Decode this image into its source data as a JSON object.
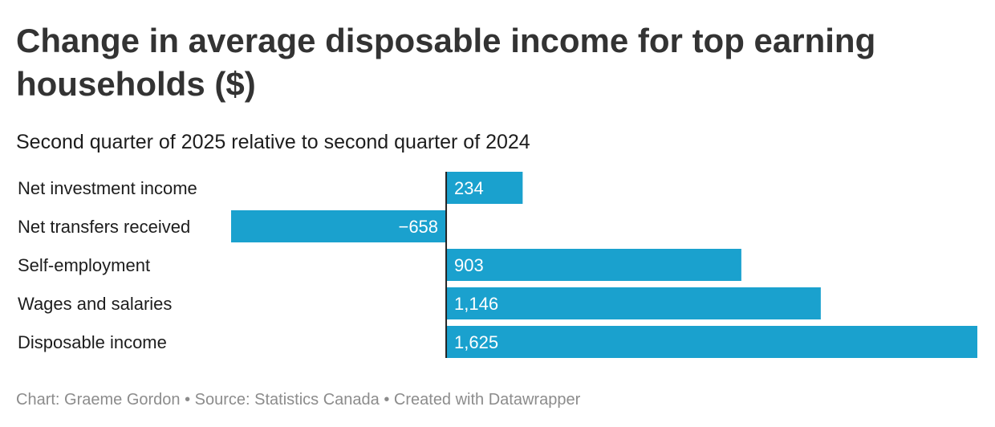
{
  "title": "Change in average disposable income for top earning households ($)",
  "subtitle": "Second quarter of 2025 relative to second quarter of 2024",
  "footer": {
    "chart": "Chart: Graeme Gordon",
    "sep1": " • ",
    "source": "Source: Statistics Canada",
    "sep2": " • ",
    "created": "Created with Datawrapper"
  },
  "colors": {
    "bar": "#1aa1ce",
    "axis": "#222222"
  },
  "chart_data": {
    "type": "bar",
    "orientation": "horizontal",
    "title": "Change in average disposable income for top earning households ($)",
    "subtitle": "Second quarter of 2025 relative to second quarter of 2024",
    "categories": [
      "Net investment income",
      "Net transfers received",
      "Self-employment",
      "Wages and salaries",
      "Disposable income"
    ],
    "values": [
      234,
      -658,
      903,
      1146,
      1625
    ],
    "value_labels": [
      "234",
      "−658",
      "903",
      "1,146",
      "1,625"
    ],
    "xlim": [
      -658,
      1625
    ],
    "xlabel": "",
    "ylabel": "",
    "grid": false
  }
}
